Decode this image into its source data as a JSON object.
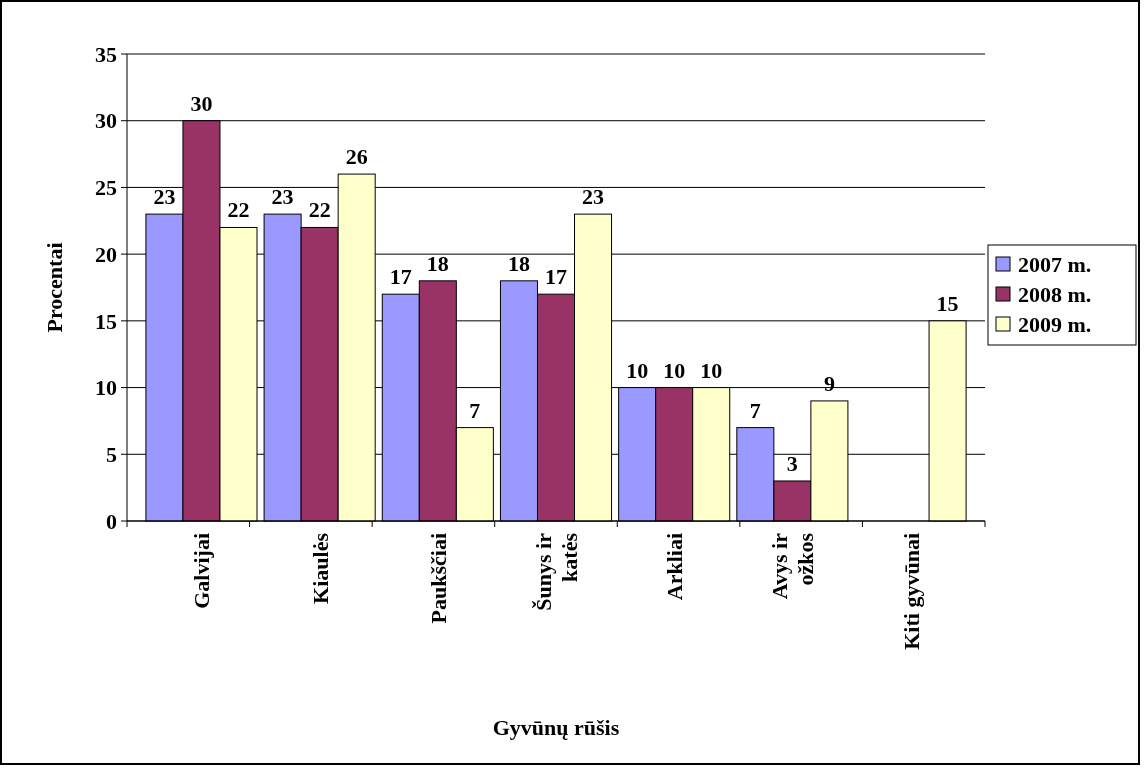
{
  "chart_data": {
    "type": "bar",
    "xlabel": "Gyvūnų rūšis",
    "ylabel": "Procentai",
    "categories": [
      "Galvijai",
      "Kiaulės",
      "Paukščiai",
      "Šunys ir katės",
      "Arkliai",
      "Avys ir ožkos",
      "Kiti gyvūnai"
    ],
    "series": [
      {
        "name": "2007 m.",
        "color": "#9999ff",
        "values": [
          23,
          23,
          17,
          18,
          10,
          7,
          null
        ]
      },
      {
        "name": "2008 m.",
        "color": "#993366",
        "values": [
          30,
          22,
          18,
          17,
          10,
          3,
          null
        ]
      },
      {
        "name": "2009 m.",
        "color": "#ffffcc",
        "values": [
          22,
          26,
          7,
          23,
          10,
          9,
          15
        ]
      }
    ],
    "ylim": [
      0,
      35
    ],
    "yticks": [
      0,
      5,
      10,
      15,
      20,
      25,
      30,
      35
    ],
    "grid": "y",
    "legend": "right",
    "data_labels": true
  }
}
